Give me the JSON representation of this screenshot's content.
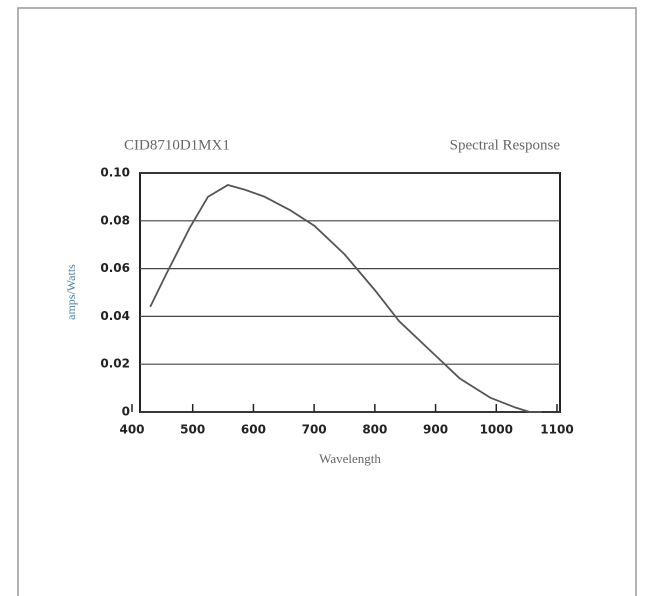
{
  "chart_data": {
    "type": "line",
    "title": "CID8710D1MX1",
    "subtitle": "Spectral Response",
    "x_label": "Wavelength",
    "y_label": "amps/Watts",
    "x": [
      430,
      455,
      495,
      525,
      558,
      586,
      619,
      660,
      700,
      750,
      800,
      840,
      890,
      940,
      990,
      1030,
      1055,
      1075
    ],
    "series": [
      {
        "name": "CID8710D1MX1",
        "color": "#555555",
        "values": [
          0.044,
          0.057,
          0.077,
          0.09,
          0.095,
          0.093,
          0.09,
          0.0845,
          0.078,
          0.066,
          0.051,
          0.038,
          0.026,
          0.014,
          0.006,
          0.002,
          0,
          0
        ]
      }
    ],
    "xlim": [
      400,
      1100
    ],
    "xticks": [
      400,
      500,
      600,
      700,
      800,
      900,
      1000,
      1100
    ],
    "ylim": [
      0,
      0.1
    ],
    "yticks": [
      0,
      0.02,
      0.04,
      0.06,
      0.08,
      {
        "value": 0.1,
        "label": "0.10"
      }
    ],
    "grid": true
  }
}
